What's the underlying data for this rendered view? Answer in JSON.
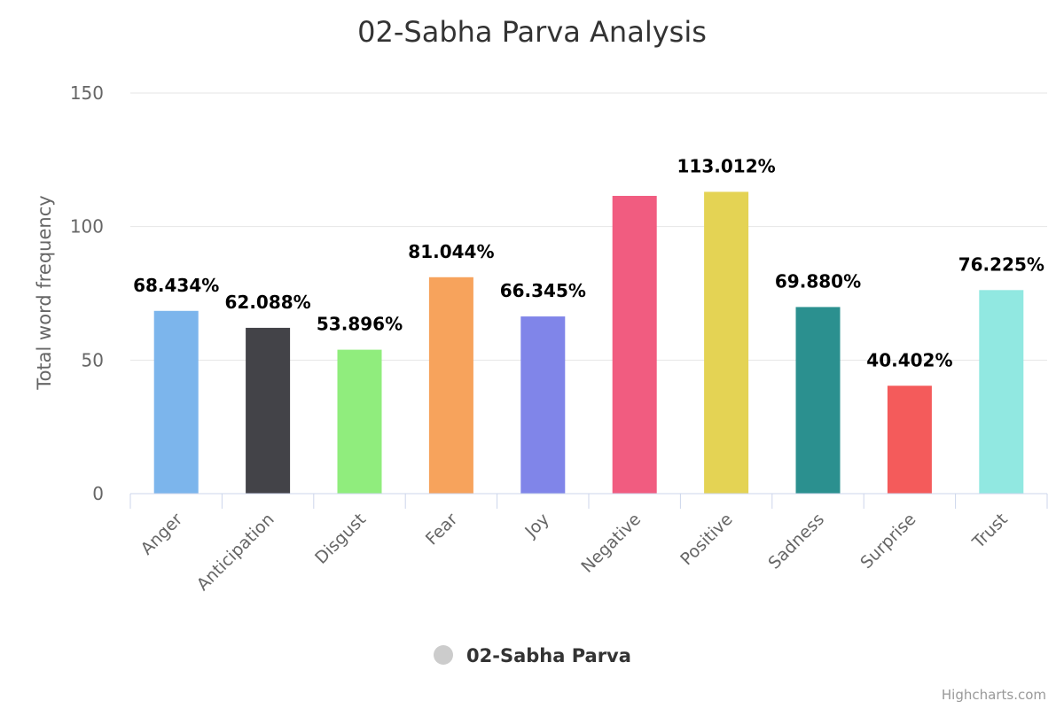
{
  "chart_data": {
    "type": "bar",
    "title": "02-Sabha Parva Analysis",
    "ylabel": "Total word frequency",
    "xlabel": "",
    "ylim": [
      0,
      150
    ],
    "yticks": [
      0,
      50,
      100,
      150
    ],
    "grid": true,
    "legend_position": "bottom-center",
    "categories": [
      "Anger",
      "Anticipation",
      "Disgust",
      "Fear",
      "Joy",
      "Negative",
      "Positive",
      "Sadness",
      "Surprise",
      "Trust"
    ],
    "series": [
      {
        "name": "02-Sabha Parva",
        "values": [
          68.434,
          62.088,
          53.896,
          81.044,
          66.345,
          111.5,
          113.012,
          69.88,
          40.402,
          76.225
        ],
        "labels": [
          "68.434%",
          "62.088%",
          "53.896%",
          "81.044%",
          "66.345%",
          "",
          "113.012%",
          "69.880%",
          "40.402%",
          "76.225%"
        ],
        "colors": [
          "#7cb5ec",
          "#434348",
          "#90ed7d",
          "#f7a35c",
          "#8085e9",
          "#f15c80",
          "#e4d354",
          "#2b908f",
          "#f45b5b",
          "#91e8e1"
        ]
      }
    ],
    "legend_marker_color": "#cccccc"
  },
  "credits": "Highcharts.com"
}
